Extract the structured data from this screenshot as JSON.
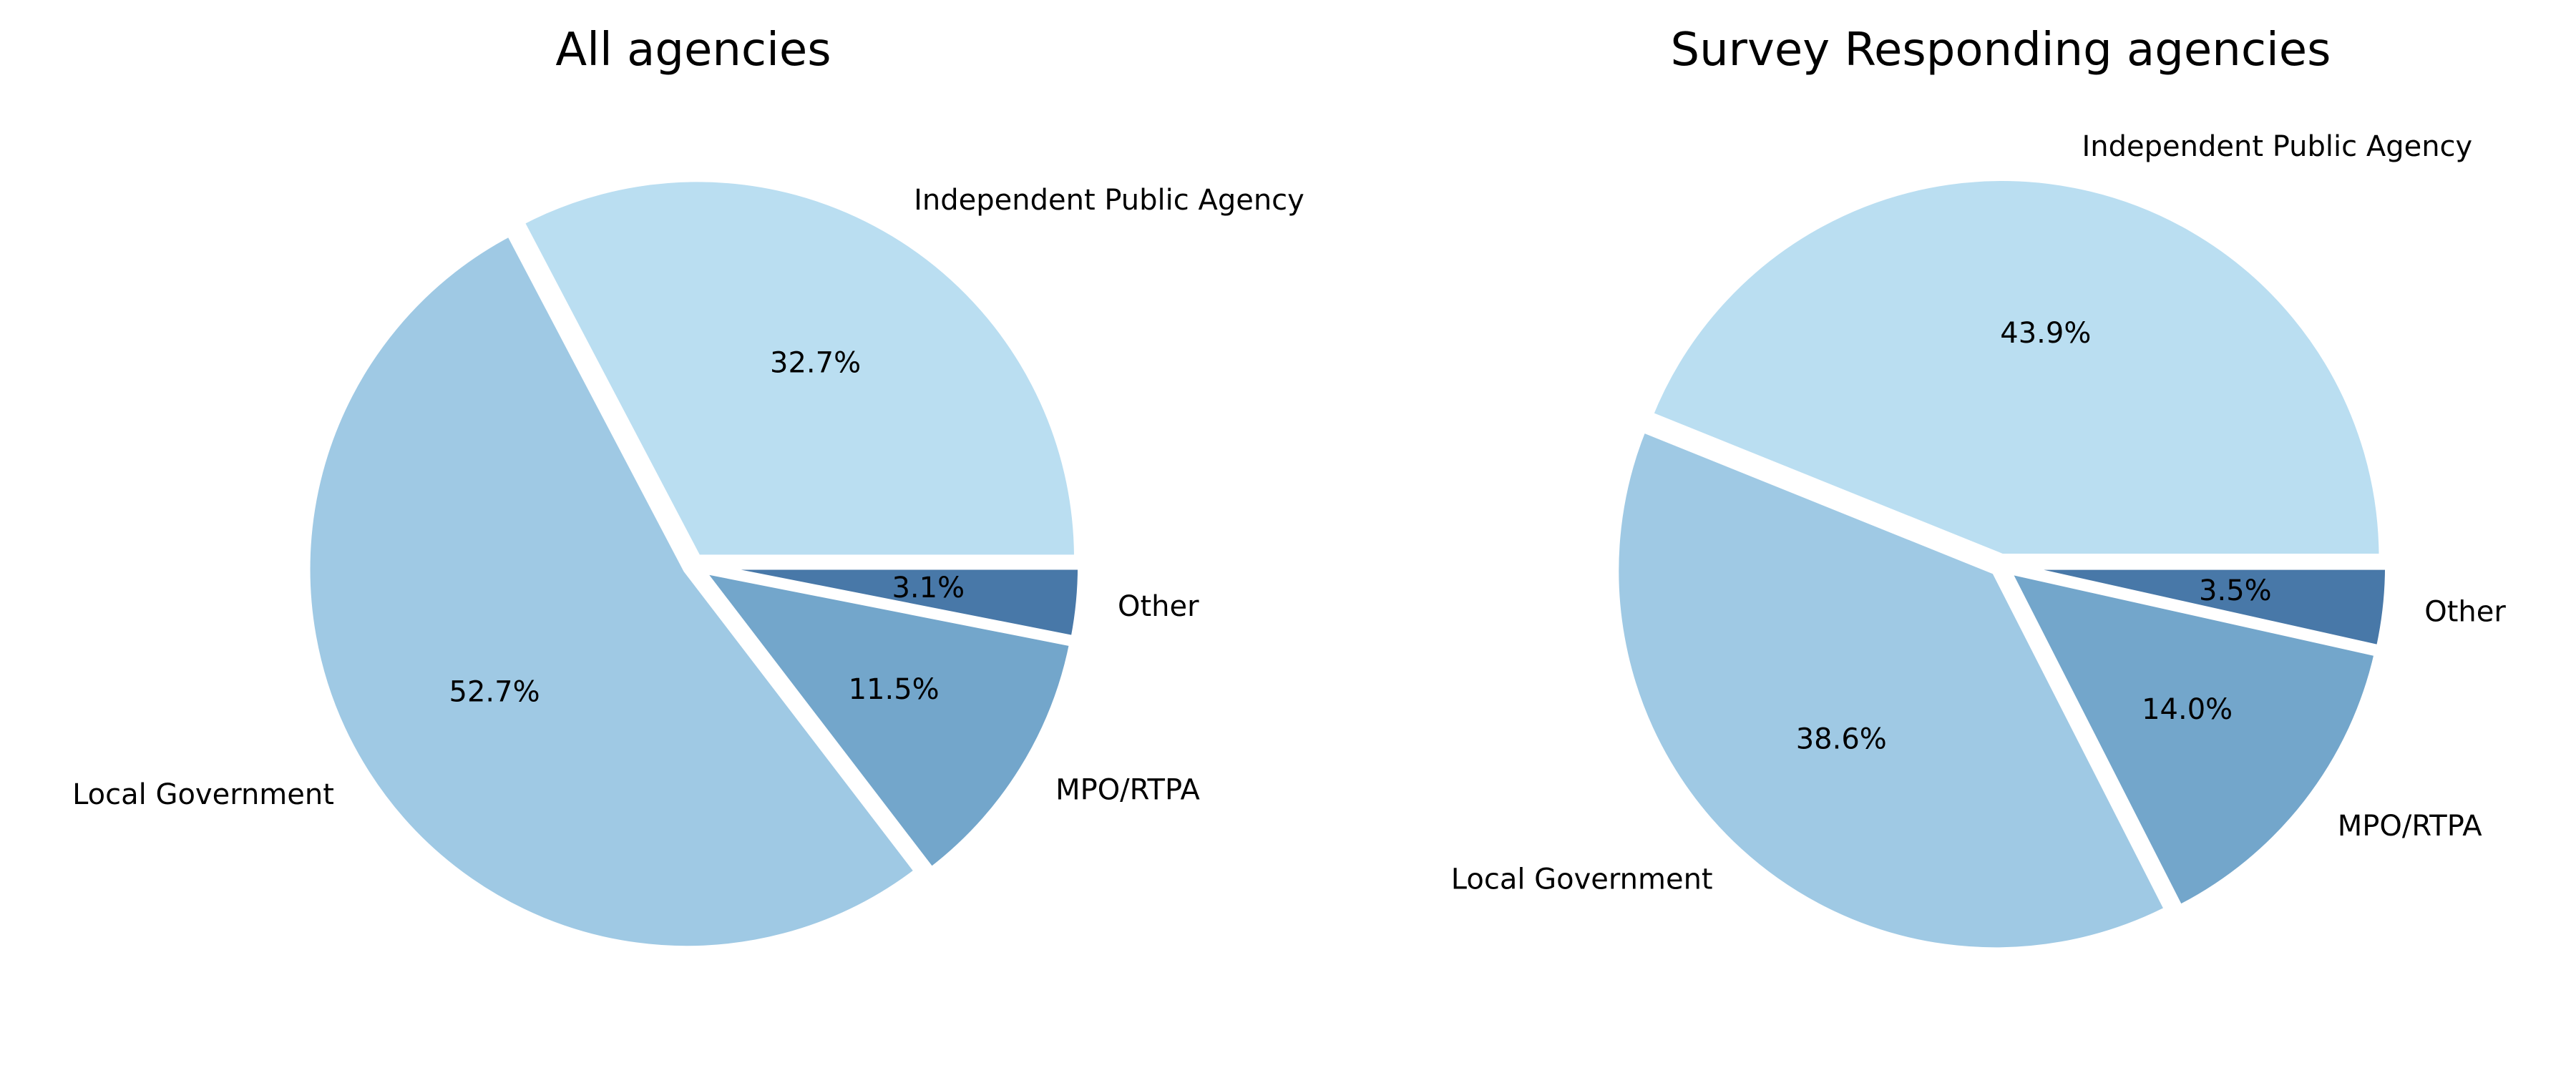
{
  "chart_data": [
    {
      "type": "pie",
      "title": "All agencies",
      "slices": [
        {
          "label": "Independent Public Agency",
          "value": 32.7,
          "pct_label": "32.7%",
          "color": "#badef1"
        },
        {
          "label": "Local Government",
          "value": 52.7,
          "pct_label": "52.7%",
          "color": "#9fc9e4"
        },
        {
          "label": "MPO/RTPA",
          "value": 11.5,
          "pct_label": "11.5%",
          "color": "#73a6cb"
        },
        {
          "label": "Other",
          "value": 3.1,
          "pct_label": "3.1%",
          "color": "#4878a8"
        }
      ],
      "start_angle_deg": 0,
      "direction": "counterclockwise",
      "exploded": true
    },
    {
      "type": "pie",
      "title": "Survey Responding agencies",
      "slices": [
        {
          "label": "Independent Public Agency",
          "value": 43.9,
          "pct_label": "43.9%",
          "color": "#badef1"
        },
        {
          "label": "Local Government",
          "value": 38.6,
          "pct_label": "38.6%",
          "color": "#9fc9e4"
        },
        {
          "label": "MPO/RTPA",
          "value": 14.0,
          "pct_label": "14.0%",
          "color": "#73a6cb"
        },
        {
          "label": "Other",
          "value": 3.5,
          "pct_label": "3.5%",
          "color": "#4878a8"
        }
      ],
      "start_angle_deg": 0,
      "direction": "counterclockwise",
      "exploded": true
    }
  ]
}
